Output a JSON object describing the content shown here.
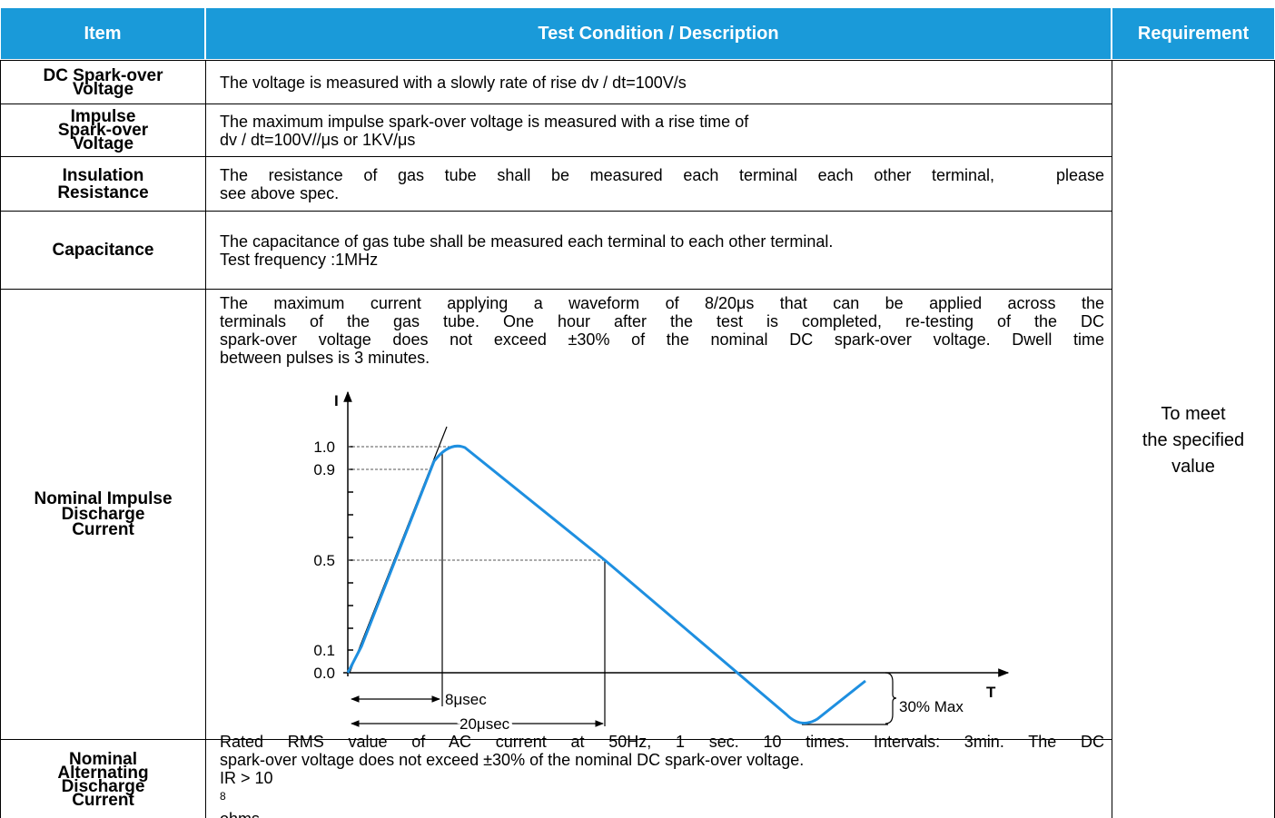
{
  "header": {
    "item": "Item",
    "condition": "Test Condition / Description",
    "requirement": "Requirement"
  },
  "rows": [
    {
      "item": [
        "DC Spark-over",
        "Voltage"
      ],
      "description": [
        "The voltage is measured with a slowly rate of rise dv / dt=100V/s"
      ]
    },
    {
      "item": [
        "Impulse",
        "Spark-over",
        "Voltage"
      ],
      "description": [
        "The maximum impulse spark-over voltage is measured with a rise time of",
        "dv / dt=100V//μs or 1KV/μs"
      ]
    },
    {
      "item": [
        "Insulation",
        "Resistance"
      ],
      "description": [
        "The resistance of gas tube shall be measured each terminal each other terminal,   please",
        "see above spec."
      ]
    },
    {
      "item": [
        "Capacitance"
      ],
      "description": [
        "The capacitance of gas tube shall be measured each terminal to each other terminal.",
        "Test frequency :1MHz"
      ]
    },
    {
      "item": [
        "Nominal Impulse",
        "Discharge",
        "Current"
      ],
      "description": [
        "The maximum current applying a waveform of 8/20μs that can be applied across the",
        "terminals of the gas tube. One hour after the test is completed, re-testing of the DC",
        "spark-over voltage does not exceed ±30% of the nominal DC spark-over voltage. Dwell time",
        "between pulses is 3 minutes."
      ]
    },
    {
      "item": [
        "Nominal",
        "Alternating",
        "Discharge",
        "Current"
      ],
      "description": [
        "Rated RMS value of AC current at 50Hz, 1 sec. 10 times. Intervals: 3min. The DC",
        "spark-over voltage does not exceed ±30% of the nominal DC spark-over voltage."
      ],
      "ir": {
        "before": "IR > 10",
        "sup": "8",
        "after": "ohms"
      }
    }
  ],
  "requirement": [
    "To meet",
    "the specified",
    "value"
  ],
  "diagram": {
    "y_axis": "I",
    "x_axis": "T",
    "levels": [
      "1.0",
      "0.9",
      "0.5",
      "0.1",
      "0.0"
    ],
    "rise": "8μsec",
    "decay": "20μsec",
    "undershoot": "30% Max"
  }
}
